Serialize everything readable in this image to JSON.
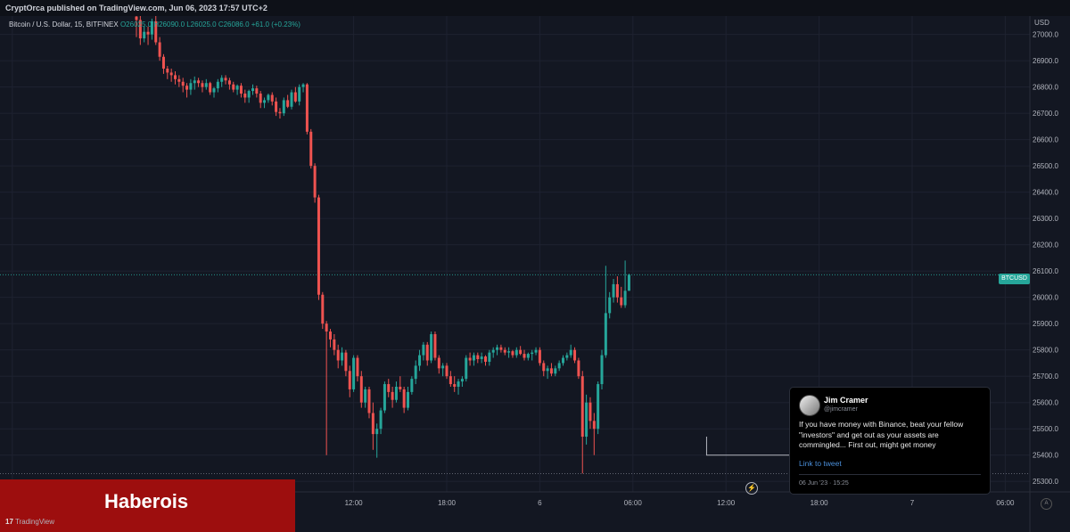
{
  "publisher": "CryptOrca published on TradingView.com, Jun 06, 2023 17:57 UTC+2",
  "legend": {
    "symbol": "Bitcoin / U.S. Dollar, 15, BITFINEX",
    "ohlc": "O26025.0  H26090.0  L26025.0  C26086.0  +61.0 (+0.23%)"
  },
  "price_tag": "BTCUSD",
  "chart_data": {
    "type": "candlestick",
    "currency_label": "USD",
    "ylim": [
      25260,
      27070
    ],
    "y_ticks": [
      27000,
      26900,
      26800,
      26700,
      26600,
      26500,
      26400,
      26300,
      26200,
      26100,
      26000,
      25900,
      25800,
      25700,
      25600,
      25500,
      25400,
      25300
    ],
    "y_tick_labels": [
      "27000.0",
      "26900.0",
      "26800.0",
      "26700.0",
      "26600.0",
      "26500.0",
      "26400.0",
      "26300.0",
      "26200.0",
      "26100.0",
      "26000.0",
      "25900.0",
      "25800.0",
      "25700.0",
      "25600.0",
      "25500.0",
      "25400.0",
      "25300.0"
    ],
    "x_ticks": [
      {
        "label": "18:00",
        "bar": -32
      },
      {
        "label": "12:00",
        "bar": 56
      },
      {
        "label": "18:00",
        "bar": 80
      },
      {
        "label": "6",
        "bar": 104
      },
      {
        "label": "06:00",
        "bar": 128
      },
      {
        "label": "12:00",
        "bar": 152
      },
      {
        "label": "18:00",
        "bar": 176
      },
      {
        "label": "7",
        "bar": 200
      },
      {
        "label": "06:00",
        "bar": 224
      }
    ],
    "last_price": 26086,
    "low_line": 25330,
    "up_color": "#26a69a",
    "down_color": "#ef5350",
    "candles": [
      [
        27068,
        27080,
        26990,
        27055
      ],
      [
        27055,
        27070,
        26960,
        26985
      ],
      [
        26985,
        27030,
        26970,
        27010
      ],
      [
        27010,
        27030,
        26960,
        27000
      ],
      [
        27000,
        27060,
        26980,
        27050
      ],
      [
        27050,
        27070,
        26960,
        26970
      ],
      [
        26970,
        26990,
        26900,
        26915
      ],
      [
        26915,
        26925,
        26850,
        26870
      ],
      [
        26870,
        26880,
        26830,
        26855
      ],
      [
        26855,
        26870,
        26820,
        26845
      ],
      [
        26845,
        26860,
        26810,
        26830
      ],
      [
        26830,
        26845,
        26800,
        26820
      ],
      [
        26820,
        26835,
        26780,
        26805
      ],
      [
        26805,
        26815,
        26760,
        26790
      ],
      [
        26790,
        26830,
        26770,
        26815
      ],
      [
        26815,
        26840,
        26790,
        26825
      ],
      [
        26825,
        26835,
        26800,
        26815
      ],
      [
        26815,
        26825,
        26780,
        26800
      ],
      [
        26800,
        26830,
        26790,
        26815
      ],
      [
        26815,
        26820,
        26770,
        26780
      ],
      [
        26780,
        26800,
        26760,
        26795
      ],
      [
        26795,
        26830,
        26780,
        26820
      ],
      [
        26820,
        26845,
        26800,
        26835
      ],
      [
        26835,
        26845,
        26810,
        26825
      ],
      [
        26825,
        26835,
        26790,
        26810
      ],
      [
        26810,
        26820,
        26780,
        26790
      ],
      [
        26790,
        26810,
        26770,
        26805
      ],
      [
        26805,
        26815,
        26760,
        26775
      ],
      [
        26775,
        26790,
        26740,
        26760
      ],
      [
        26760,
        26790,
        26740,
        26785
      ],
      [
        26785,
        26810,
        26770,
        26795
      ],
      [
        26795,
        26805,
        26760,
        26775
      ],
      [
        26775,
        26785,
        26720,
        26740
      ],
      [
        26740,
        26760,
        26720,
        26750
      ],
      [
        26750,
        26775,
        26740,
        26770
      ],
      [
        26770,
        26780,
        26730,
        26745
      ],
      [
        26745,
        26760,
        26690,
        26705
      ],
      [
        26705,
        26720,
        26680,
        26700
      ],
      [
        26700,
        26760,
        26690,
        26750
      ],
      [
        26750,
        26770,
        26720,
        26725
      ],
      [
        26725,
        26790,
        26715,
        26780
      ],
      [
        26780,
        26800,
        26740,
        26745
      ],
      [
        26745,
        26810,
        26730,
        26800
      ],
      [
        26800,
        26815,
        26780,
        26810
      ],
      [
        26810,
        26815,
        26620,
        26630
      ],
      [
        26630,
        26640,
        26490,
        26500
      ],
      [
        26500,
        26510,
        26360,
        26380
      ],
      [
        26380,
        26390,
        25990,
        26010
      ],
      [
        26010,
        26020,
        25880,
        25900
      ],
      [
        25900,
        25910,
        25400,
        25870
      ],
      [
        25870,
        25880,
        25810,
        25840
      ],
      [
        25840,
        25860,
        25780,
        25800
      ],
      [
        25800,
        25820,
        25730,
        25760
      ],
      [
        25760,
        25810,
        25740,
        25790
      ],
      [
        25790,
        25800,
        25700,
        25720
      ],
      [
        25720,
        25740,
        25620,
        25650
      ],
      [
        25650,
        25780,
        25640,
        25770
      ],
      [
        25770,
        25780,
        25680,
        25700
      ],
      [
        25700,
        25720,
        25580,
        25600
      ],
      [
        25600,
        25660,
        25580,
        25650
      ],
      [
        25650,
        25660,
        25540,
        25560
      ],
      [
        25560,
        25600,
        25420,
        25480
      ],
      [
        25480,
        25520,
        25390,
        25500
      ],
      [
        25500,
        25580,
        25480,
        25570
      ],
      [
        25570,
        25680,
        25560,
        25670
      ],
      [
        25670,
        25690,
        25620,
        25640
      ],
      [
        25640,
        25660,
        25580,
        25610
      ],
      [
        25610,
        25680,
        25600,
        25660
      ],
      [
        25660,
        25700,
        25640,
        25650
      ],
      [
        25650,
        25660,
        25560,
        25580
      ],
      [
        25580,
        25660,
        25570,
        25640
      ],
      [
        25640,
        25700,
        25630,
        25690
      ],
      [
        25690,
        25760,
        25670,
        25740
      ],
      [
        25740,
        25800,
        25720,
        25780
      ],
      [
        25780,
        25830,
        25760,
        25820
      ],
      [
        25820,
        25830,
        25740,
        25760
      ],
      [
        25760,
        25870,
        25750,
        25860
      ],
      [
        25860,
        25870,
        25760,
        25770
      ],
      [
        25770,
        25780,
        25710,
        25730
      ],
      [
        25730,
        25750,
        25700,
        25740
      ],
      [
        25740,
        25750,
        25690,
        25700
      ],
      [
        25700,
        25720,
        25660,
        25670
      ],
      [
        25670,
        25700,
        25640,
        25660
      ],
      [
        25660,
        25690,
        25630,
        25680
      ],
      [
        25680,
        25700,
        25660,
        25690
      ],
      [
        25690,
        25780,
        25680,
        25770
      ],
      [
        25770,
        25790,
        25740,
        25760
      ],
      [
        25760,
        25790,
        25740,
        25780
      ],
      [
        25780,
        25790,
        25750,
        25765
      ],
      [
        25765,
        25790,
        25750,
        25775
      ],
      [
        25775,
        25780,
        25740,
        25755
      ],
      [
        25755,
        25800,
        25740,
        25790
      ],
      [
        25790,
        25810,
        25770,
        25800
      ],
      [
        25800,
        25820,
        25780,
        25810
      ],
      [
        25810,
        25820,
        25790,
        25800
      ],
      [
        25800,
        25810,
        25780,
        25790
      ],
      [
        25790,
        25810,
        25770,
        25795
      ],
      [
        25795,
        25800,
        25770,
        25780
      ],
      [
        25780,
        25810,
        25770,
        25800
      ],
      [
        25800,
        25815,
        25780,
        25785
      ],
      [
        25785,
        25800,
        25760,
        25770
      ],
      [
        25770,
        25790,
        25760,
        25785
      ],
      [
        25785,
        25800,
        25760,
        25790
      ],
      [
        25790,
        25810,
        25780,
        25800
      ],
      [
        25800,
        25810,
        25740,
        25750
      ],
      [
        25750,
        25760,
        25700,
        25720
      ],
      [
        25720,
        25740,
        25690,
        25730
      ],
      [
        25730,
        25750,
        25700,
        25710
      ],
      [
        25710,
        25740,
        25700,
        25730
      ],
      [
        25730,
        25760,
        25720,
        25750
      ],
      [
        25750,
        25780,
        25740,
        25770
      ],
      [
        25770,
        25790,
        25760,
        25780
      ],
      [
        25780,
        25820,
        25770,
        25800
      ],
      [
        25800,
        25810,
        25750,
        25760
      ],
      [
        25760,
        25770,
        25690,
        25700
      ],
      [
        25700,
        25720,
        25330,
        25470
      ],
      [
        25470,
        25630,
        25440,
        25600
      ],
      [
        25600,
        25620,
        25500,
        25530
      ],
      [
        25530,
        25560,
        25400,
        25500
      ],
      [
        25500,
        25680,
        25480,
        25670
      ],
      [
        25670,
        25800,
        25650,
        25780
      ],
      [
        25780,
        26120,
        25770,
        25940
      ],
      [
        25940,
        26020,
        25920,
        26000
      ],
      [
        26000,
        26070,
        25980,
        26050
      ],
      [
        26050,
        26080,
        25980,
        26000
      ],
      [
        26000,
        26040,
        25960,
        25970
      ],
      [
        25970,
        26140,
        25960,
        26025
      ],
      [
        26025,
        26090,
        26025,
        26086
      ]
    ]
  },
  "tweet": {
    "name": "Jim Cramer",
    "handle": "@jimcramer",
    "text": "If you have money with Binance, beat your fellow \"investors\" and get out as your assets are commingled... First out, might get money",
    "link": "Link to tweet",
    "date": "06 Jun '23 · 15:25"
  },
  "banner": "Haberois",
  "brand": "TradingView",
  "footer_a": "A"
}
